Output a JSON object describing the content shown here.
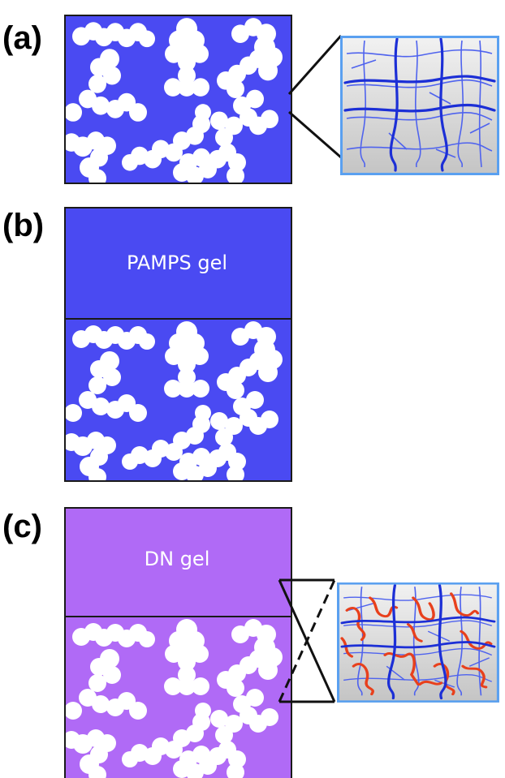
{
  "panels": [
    {
      "label": "(a)"
    },
    {
      "label": "(b)",
      "gel_label": "PAMPS gel"
    },
    {
      "label": "(c)",
      "gel_label": "DN gel"
    }
  ],
  "colors": {
    "blue_gel": "#4a4af2",
    "purple_gel": "#b06af6",
    "pore": "#ffffff",
    "outline": "#1a1a1a",
    "inset_border": "#5aa0f0",
    "inset_bg": "#dcdcdc",
    "network_blue": "#1c2fd6",
    "network_thin": "#4f63ee",
    "network_red": "#e8401c"
  }
}
